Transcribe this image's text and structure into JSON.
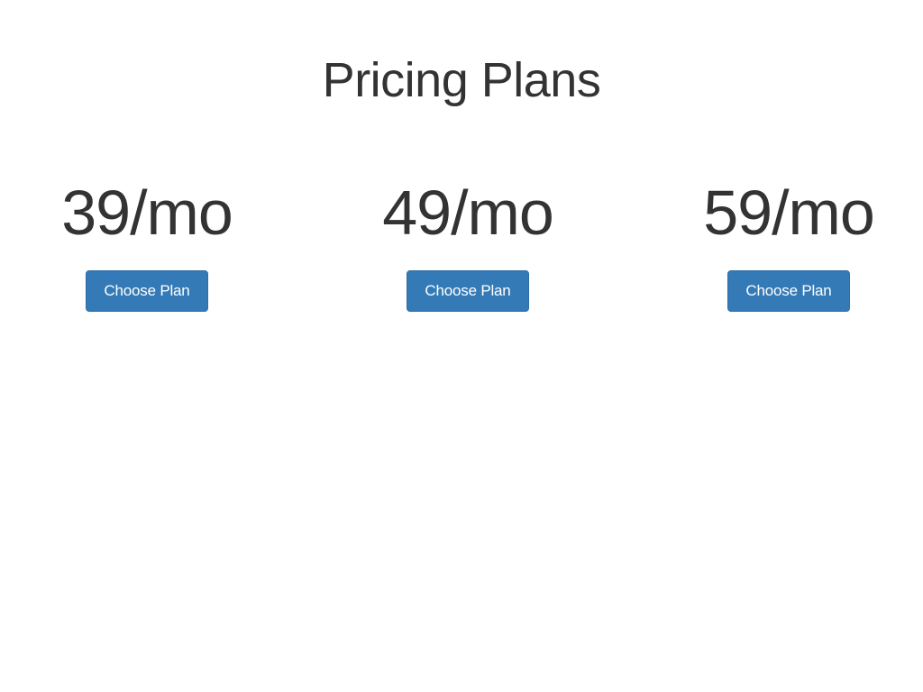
{
  "page": {
    "title": "Pricing Plans"
  },
  "plans": [
    {
      "price": "39/mo",
      "button_label": "Choose Plan"
    },
    {
      "price": "49/mo",
      "button_label": "Choose Plan"
    },
    {
      "price": "59/mo",
      "button_label": "Choose Plan"
    }
  ],
  "colors": {
    "text": "#333333",
    "button_bg": "#337ab7",
    "button_border": "#2e6da4",
    "button_text": "#ffffff",
    "background": "#ffffff"
  }
}
